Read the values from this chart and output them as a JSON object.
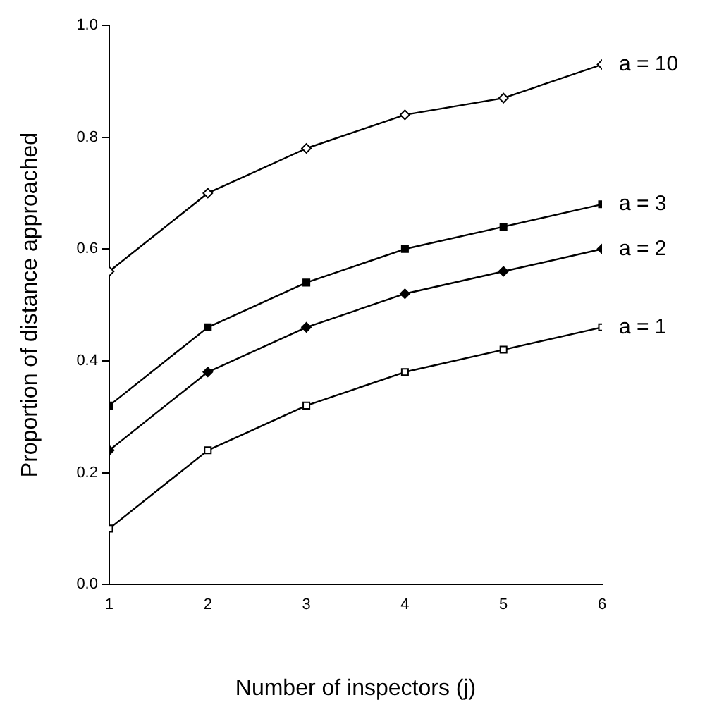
{
  "chart_data": {
    "type": "line",
    "xlabel": "Number of inspectors (j)",
    "ylabel": "Proportion of distance approached",
    "x": [
      1,
      2,
      3,
      4,
      5,
      6
    ],
    "series": [
      {
        "name": "a = 10",
        "color": "#000000",
        "marker": "diamond",
        "values": [
          0.56,
          0.7,
          0.78,
          0.84,
          0.87,
          0.93
        ]
      },
      {
        "name": "a = 3",
        "color": "#000000",
        "marker": "square",
        "values": [
          0.32,
          0.46,
          0.54,
          0.6,
          0.64,
          0.68
        ]
      },
      {
        "name": "a = 2",
        "color": "#000000",
        "marker": "diamond",
        "values": [
          0.24,
          0.38,
          0.46,
          0.52,
          0.56,
          0.6
        ]
      },
      {
        "name": "a = 1",
        "color": "#000000",
        "marker": "square",
        "values": [
          0.1,
          0.24,
          0.32,
          0.38,
          0.42,
          0.46
        ]
      }
    ],
    "xlim": [
      1,
      6
    ],
    "xticks": [
      1,
      2,
      3,
      4,
      5,
      6
    ],
    "ylim": [
      0,
      1
    ],
    "yticks": [
      {
        "value": 0,
        "label": "0.0"
      },
      {
        "value": 0.2,
        "label": "0.2"
      },
      {
        "value": 0.4,
        "label": "0.4"
      },
      {
        "value": 0.6,
        "label": "0.6"
      },
      {
        "value": 0.8,
        "label": "0.8"
      },
      {
        "value": 1,
        "label": "1.0"
      }
    ],
    "grid": false,
    "legend": false,
    "line_style": "solid"
  }
}
